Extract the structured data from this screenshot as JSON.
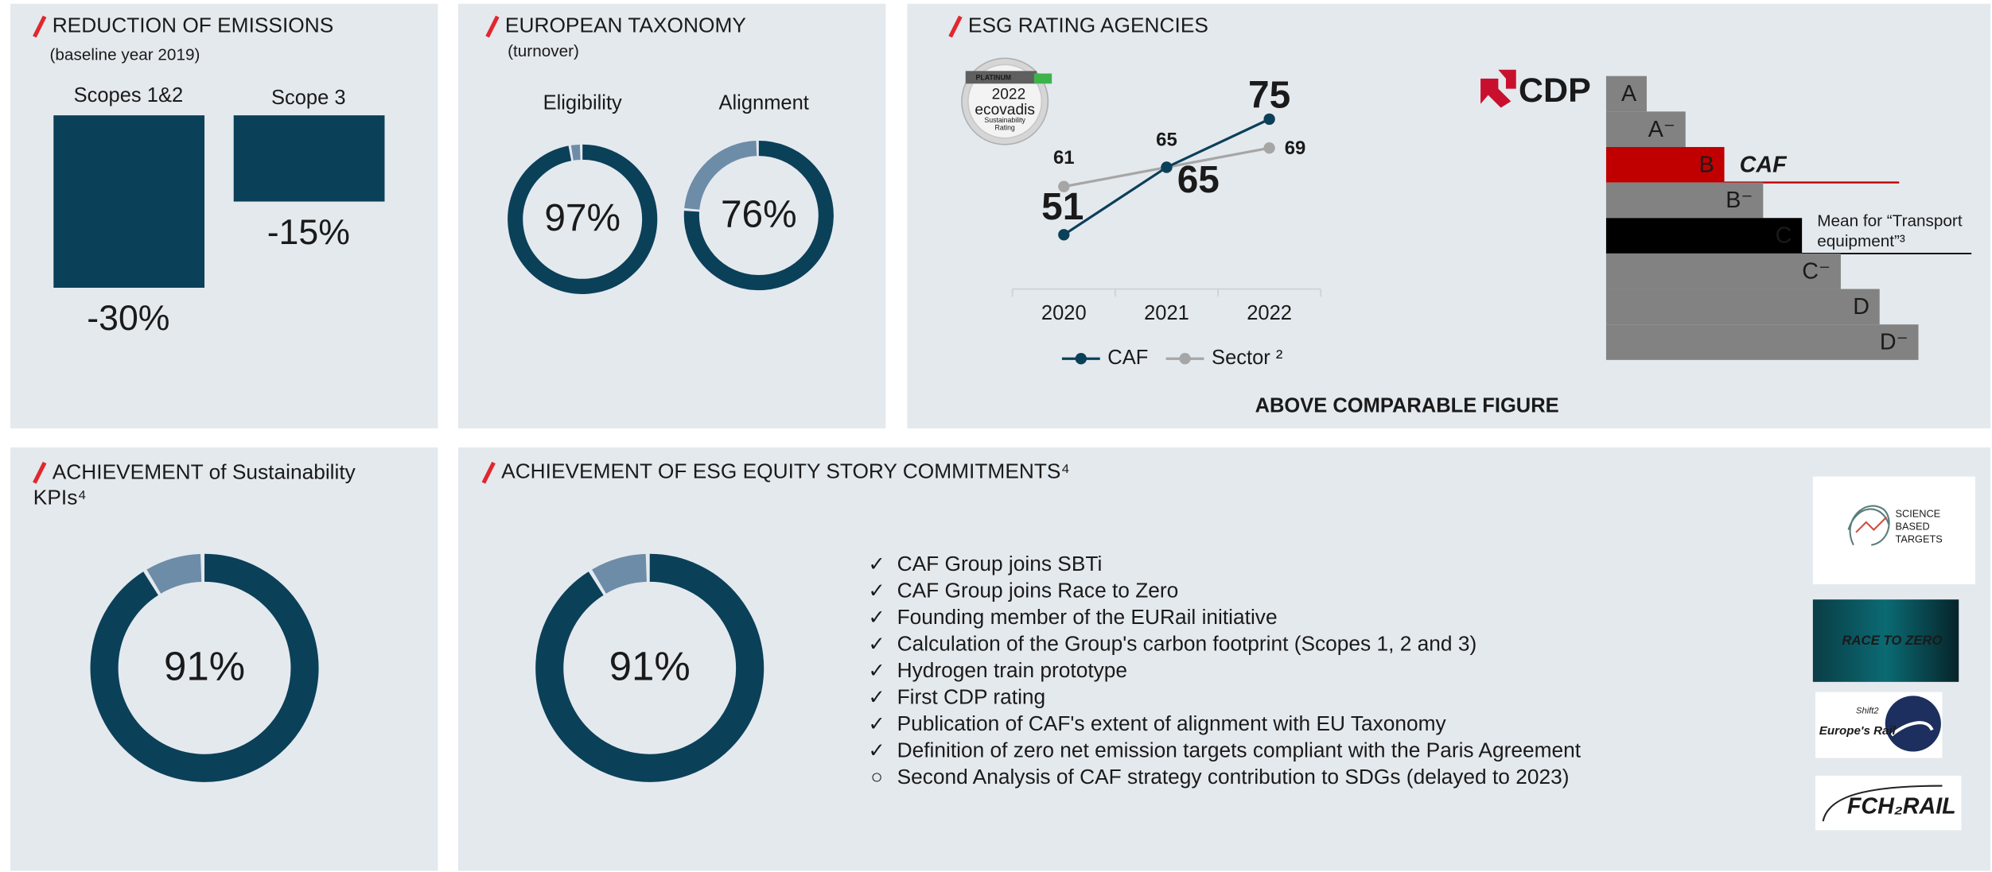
{
  "chart_data": [
    {
      "type": "bar",
      "title": "REDUCTION OF EMISSIONS",
      "subtitle": "(baseline year 2019)",
      "categories": [
        "Scopes 1&2",
        "Scope 3"
      ],
      "values": [
        -30,
        -15
      ],
      "value_labels": [
        "-30%",
        "-15%"
      ],
      "color": "#0b4059",
      "ylim": [
        -35,
        0
      ]
    },
    {
      "type": "donut",
      "title": "EUROPEAN TAXONOMY",
      "subtitle": "(turnover)",
      "categories": [
        "Eligibility",
        "Alignment"
      ],
      "values": [
        97,
        76
      ],
      "value_labels": [
        "97%",
        "76%"
      ],
      "color": "#0b4059",
      "rest_color": "#6d8ca8"
    },
    {
      "type": "line",
      "title": "ESG RATING AGENCIES",
      "categories": [
        "2020",
        "2021",
        "2022"
      ],
      "series": [
        {
          "name": "CAF",
          "color": "#0b4059",
          "values": [
            51,
            65,
            75
          ]
        },
        {
          "name": "Sector ²",
          "color": "#a6a6a6",
          "values": [
            61,
            65,
            69
          ]
        }
      ],
      "ylim": [
        40,
        85
      ],
      "legend": "bottom"
    },
    {
      "type": "donut",
      "title": "ACHIEVEMENT of Sustainability KPIs⁴",
      "values": [
        91
      ],
      "value_labels": [
        "91%"
      ],
      "color": "#0b4059",
      "rest_color": "#6d8ca8"
    },
    {
      "type": "donut",
      "title": "ACHIEVEMENT OF ESG EQUITY STORY COMMITMENTS⁴",
      "values": [
        91
      ],
      "value_labels": [
        "91%"
      ],
      "color": "#0b4059",
      "rest_color": "#6d8ca8"
    }
  ],
  "ratings": {
    "footer": "ABOVE COMPARABLE FIGURE",
    "ecovadis": {
      "medal": "PLATINUM",
      "year": "2022",
      "brand": "ecovadis",
      "caption": [
        "Sustainability",
        "Rating"
      ]
    },
    "cdp": {
      "logo": "CDP",
      "grades": [
        "A",
        "A⁻",
        "B",
        "B⁻",
        "C",
        "C⁻",
        "D",
        "D⁻"
      ],
      "company": "CAF",
      "company_grade": "B",
      "mean_grade": "C",
      "mean_label": [
        "Mean for “Transport",
        "equipment”³"
      ]
    }
  },
  "commitments": {
    "items": [
      {
        "mark": "✓",
        "text": "CAF Group joins SBTi"
      },
      {
        "mark": "✓",
        "text": "CAF Group joins Race to Zero"
      },
      {
        "mark": "✓",
        "text": "Founding member of the EURail initiative"
      },
      {
        "mark": "✓",
        "text": "Calculation of the Group's carbon footprint (Scopes 1, 2 and 3)"
      },
      {
        "mark": "✓",
        "text": "Hydrogen train prototype"
      },
      {
        "mark": "✓",
        "text": "First CDP rating"
      },
      {
        "mark": "✓",
        "text": "Publication of CAF's extent of alignment with EU Taxonomy"
      },
      {
        "mark": "✓",
        "text": "Definition of zero net emission targets compliant with the Paris Agreement"
      },
      {
        "mark": "○",
        "text": "Second Analysis of CAF strategy contribution to SDGs (delayed to 2023)"
      }
    ],
    "logos": {
      "sbt": [
        "SCIENCE",
        "BASED",
        "TARGETS"
      ],
      "race": "RACE TO ZERO",
      "rail": "Europe's Rail",
      "shift": "Shift2",
      "fch": "FCH₂RAIL"
    }
  }
}
